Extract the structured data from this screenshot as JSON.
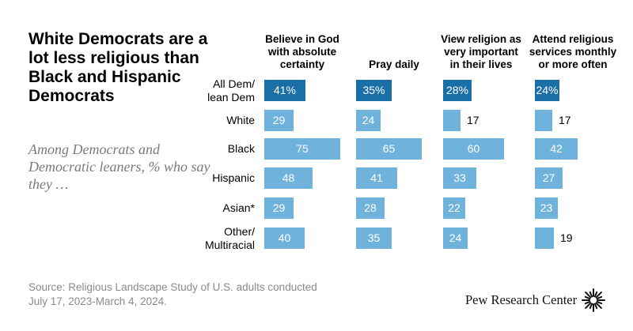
{
  "title": "White Democrats are a lot less religious than Black and Hispanic Democrats",
  "subtitle": "Among Democrats and Democratic leaners, % who say they …",
  "source": {
    "line1": "Source: Religious Landscape Study of U.S. adults conducted",
    "line2": "July 17, 2023-March 4, 2024."
  },
  "brand": {
    "name": "Pew Research Center"
  },
  "colors": {
    "highlight": "#1a6fa6",
    "bar": "#6fb3dd",
    "highlight_text": "#ffffff",
    "bar_text": "#ffffff",
    "outside_text": "#000000"
  },
  "chart_data": {
    "type": "bar",
    "categories": [
      "All Dem/\nlean Dem",
      "White",
      "Black",
      "Hispanic",
      "Asian*",
      "Other/\nMultiracial"
    ],
    "category_lines": [
      [
        "All Dem/",
        "lean Dem"
      ],
      [
        "White"
      ],
      [
        "Black"
      ],
      [
        "Hispanic"
      ],
      [
        "Asian*"
      ],
      [
        "Other/",
        "Multiracial"
      ]
    ],
    "series": [
      {
        "name": "Believe in God with absolute certainty",
        "header_lines": [
          "Believe in God",
          "with absolute",
          "certainty"
        ],
        "values": [
          41,
          29,
          75,
          48,
          29,
          40
        ],
        "labels": [
          "41%",
          "29",
          "75",
          "48",
          "29",
          "40"
        ]
      },
      {
        "name": "Pray daily",
        "header_lines": [
          "Pray daily"
        ],
        "values": [
          35,
          24,
          65,
          41,
          28,
          35
        ],
        "labels": [
          "35%",
          "24",
          "65",
          "41",
          "28",
          "35"
        ]
      },
      {
        "name": "View religion as very important in their lives",
        "header_lines": [
          "View religion as",
          "very important",
          "in their lives"
        ],
        "values": [
          28,
          17,
          60,
          33,
          22,
          24
        ],
        "labels": [
          "28%",
          "17",
          "60",
          "33",
          "22",
          "24"
        ]
      },
      {
        "name": "Attend religious services monthly or more often",
        "header_lines": [
          "Attend religious",
          "services monthly",
          "or more often"
        ],
        "values": [
          24,
          17,
          42,
          27,
          23,
          19
        ],
        "labels": [
          "24%",
          "17",
          "42",
          "27",
          "23",
          "19"
        ]
      }
    ],
    "highlight_row": 0,
    "xlim": [
      0,
      100
    ]
  }
}
